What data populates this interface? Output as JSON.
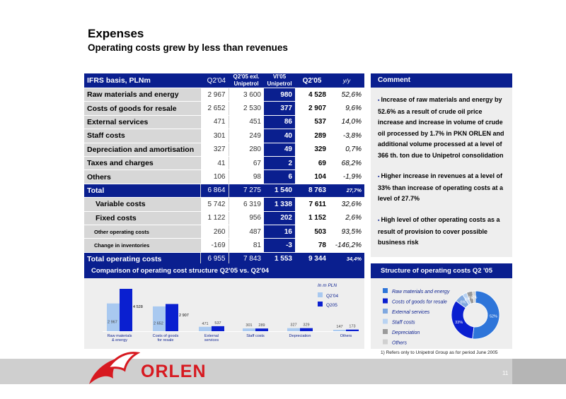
{
  "title": "Expenses",
  "subtitle": "Operating costs grew by less than revenues",
  "table": {
    "headers": {
      "label": "IFRS basis,  PLNm",
      "q204": "Q2'04",
      "q205ex_line1": "Q2'05 exl.",
      "q205ex_line2": "Unipetrol",
      "vi05_line1": "VI'05",
      "vi05_line2": "Unipetrol",
      "q205": "Q2'05",
      "yy": "y/y"
    },
    "rows": [
      {
        "label": "Raw materials and energy",
        "q204": "2 967",
        "q205ex": "3 600",
        "vi05": "980",
        "q205": "4 528",
        "yy": "52,6%"
      },
      {
        "label": "Costs of goods for resale",
        "q204": "2 652",
        "q205ex": "2 530",
        "vi05": "377",
        "q205": "2 907",
        "yy": "9,6%"
      },
      {
        "label": "External services",
        "q204": "471",
        "q205ex": "451",
        "vi05": "86",
        "q205": "537",
        "yy": "14,0%"
      },
      {
        "label": "Staff costs",
        "q204": "301",
        "q205ex": "249",
        "vi05": "40",
        "q205": "289",
        "yy": "-3,8%"
      },
      {
        "label": "Depreciation and amortisation",
        "q204": "327",
        "q205ex": "280",
        "vi05": "49",
        "q205": "329",
        "yy": "0,7%"
      },
      {
        "label": "Taxes and charges",
        "q204": "41",
        "q205ex": "67",
        "vi05": "2",
        "q205": "69",
        "yy": "68,2%"
      },
      {
        "label": "Others",
        "q204": "106",
        "q205ex": "98",
        "vi05": "6",
        "q205": "104",
        "yy": "-1,9%"
      },
      {
        "label": "Total",
        "q204": "6 864",
        "q205ex": "7 275",
        "vi05": "1 540",
        "q205": "8 763",
        "yy": "27,7%"
      },
      {
        "label": "Variable costs",
        "q204": "5 742",
        "q205ex": "6 319",
        "vi05": "1 338",
        "q205": "7 611",
        "yy": "32,6%"
      },
      {
        "label": "Fixed costs",
        "q204": "1 122",
        "q205ex": "956",
        "vi05": "202",
        "q205": "1 152",
        "yy": "2,6%"
      },
      {
        "label": "Other operating costs",
        "q204": "260",
        "q205ex": "487",
        "vi05": "16",
        "q205": "503",
        "yy": "93,5%"
      },
      {
        "label": "Change in inventories",
        "q204": "-169",
        "q205ex": "81",
        "vi05": "-3",
        "q205": "78",
        "yy": "-146,2%"
      },
      {
        "label": "Total operating costs",
        "q204": "6 955",
        "q205ex": "7 843",
        "vi05": "1 553",
        "q205": "9 344",
        "yy": "34,4%"
      }
    ]
  },
  "comment": {
    "title": "Comment",
    "items": [
      "Increase of raw materials and energy by 52.6% as a result of crude oil price increase and increase in volume of crude oil processed by 1.7% in PKN ORLEN and additional volume processed at a level of 366 th. ton due to Unipetrol consolidation",
      "Higher increase in revenues at a level of 33% than increase of operating costs at a level of 27.7%",
      "High level of other operating costs as a result of provision to cover possible business risk"
    ]
  },
  "chart_data": [
    {
      "type": "bar",
      "title": "Comparison of operating cost structure Q2'05 vs. Q2'04",
      "unit_label": "In m PLN",
      "categories": [
        "Raw materials & energy",
        "Costs of goods for resale",
        "External services",
        "Staff costs",
        "Depreciation",
        "Others"
      ],
      "category_labels_line1": [
        "Raw materials",
        "Costs of goods",
        "External",
        "Staff costs",
        "Depreciation",
        "Others"
      ],
      "category_labels_line2": [
        "& energy",
        "for resale",
        "services",
        "",
        "",
        ""
      ],
      "series": [
        {
          "name": "Q2'04",
          "values": [
            2967,
            2652,
            471,
            301,
            327,
            147
          ],
          "labels": [
            "2 967",
            "2 652",
            "471",
            "301",
            "327",
            "147"
          ],
          "color": "#a9c9f0"
        },
        {
          "name": "Q205",
          "values": [
            4528,
            2907,
            537,
            289,
            329,
            173
          ],
          "labels": [
            "4 528",
            "2 907",
            "537",
            "289",
            "329",
            "173"
          ],
          "color": "#0a1fd0"
        }
      ]
    },
    {
      "type": "pie",
      "title": "Structure of operating costs  Q2 '05",
      "categories": [
        "Raw materials and energy",
        "Costs of goods for resale",
        "External services",
        "Staff costs",
        "Depreciation",
        "Others"
      ],
      "values": [
        52,
        33,
        6,
        3,
        4,
        2
      ],
      "labels": [
        "52%",
        "33%",
        "6%",
        "3%",
        "4%",
        "2%"
      ],
      "colors": [
        "#2e75d9",
        "#0a1fd0",
        "#7fa8e0",
        "#b9d3f2",
        "#9a9a9a",
        "#d0d0d0"
      ]
    }
  ],
  "footnote": "1) Refers only to Unipetrol Group as for period June 2005",
  "logo": "ORLEN",
  "page_number": "11"
}
